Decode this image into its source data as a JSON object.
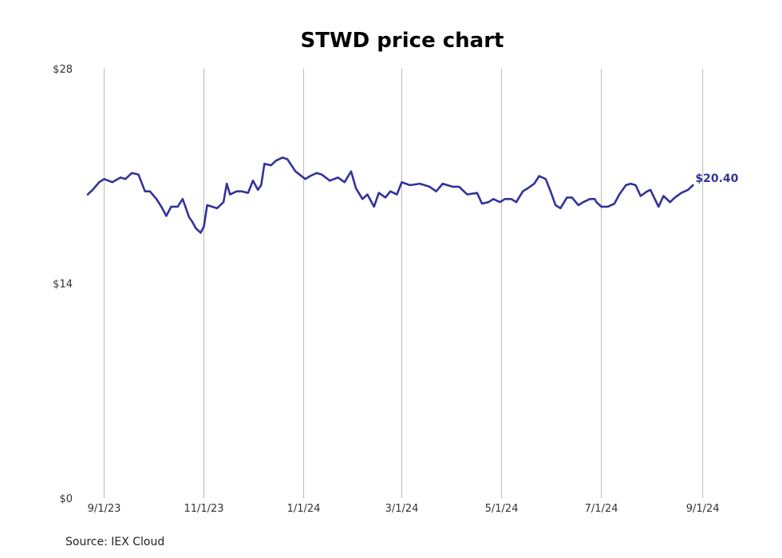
{
  "chart_data": {
    "type": "line",
    "title": "STWD price chart",
    "source": "Source: IEX Cloud",
    "xlabel": "",
    "ylabel": "",
    "ylim": [
      0,
      28
    ],
    "y_ticks": [
      {
        "value": 0,
        "label": "$0"
      },
      {
        "value": 14,
        "label": "$14"
      },
      {
        "value": 28,
        "label": "$28"
      }
    ],
    "xlim": [
      "2023-08-22",
      "2024-09-08"
    ],
    "x_ticks": [
      {
        "date": "2023-09-01",
        "label": "9/1/23"
      },
      {
        "date": "2023-11-01",
        "label": "11/1/23"
      },
      {
        "date": "2024-01-01",
        "label": "1/1/24"
      },
      {
        "date": "2024-03-01",
        "label": "3/1/24"
      },
      {
        "date": "2024-05-01",
        "label": "5/1/24"
      },
      {
        "date": "2024-07-01",
        "label": "7/1/24"
      },
      {
        "date": "2024-09-01",
        "label": "9/1/24"
      }
    ],
    "grid": "vertical",
    "line_color": "#333399",
    "last_value_label": "$20.40",
    "series": [
      {
        "points": [
          [
            "2023-08-22",
            19.8
          ],
          [
            "2023-08-25",
            20.1
          ],
          [
            "2023-08-29",
            20.6
          ],
          [
            "2023-09-01",
            20.8
          ],
          [
            "2023-09-06",
            20.6
          ],
          [
            "2023-09-11",
            20.9
          ],
          [
            "2023-09-14",
            20.8
          ],
          [
            "2023-09-18",
            21.2
          ],
          [
            "2023-09-22",
            21.1
          ],
          [
            "2023-09-26",
            20.0
          ],
          [
            "2023-09-29",
            20.0
          ],
          [
            "2023-10-03",
            19.5
          ],
          [
            "2023-10-06",
            19.0
          ],
          [
            "2023-10-09",
            18.4
          ],
          [
            "2023-10-12",
            19.0
          ],
          [
            "2023-10-16",
            19.0
          ],
          [
            "2023-10-19",
            19.5
          ],
          [
            "2023-10-23",
            18.3
          ],
          [
            "2023-10-25",
            18.0
          ],
          [
            "2023-10-27",
            17.6
          ],
          [
            "2023-10-30",
            17.3
          ],
          [
            "2023-11-01",
            17.7
          ],
          [
            "2023-11-03",
            19.1
          ],
          [
            "2023-11-06",
            19.0
          ],
          [
            "2023-11-09",
            18.9
          ],
          [
            "2023-11-13",
            19.3
          ],
          [
            "2023-11-15",
            20.5
          ],
          [
            "2023-11-17",
            19.8
          ],
          [
            "2023-11-21",
            20.0
          ],
          [
            "2023-11-24",
            20.0
          ],
          [
            "2023-11-28",
            19.9
          ],
          [
            "2023-12-01",
            20.7
          ],
          [
            "2023-12-04",
            20.1
          ],
          [
            "2023-12-06",
            20.4
          ],
          [
            "2023-12-08",
            21.8
          ],
          [
            "2023-12-12",
            21.7
          ],
          [
            "2023-12-15",
            22.0
          ],
          [
            "2023-12-19",
            22.2
          ],
          [
            "2023-12-22",
            22.1
          ],
          [
            "2023-12-27",
            21.3
          ],
          [
            "2024-01-02",
            20.8
          ],
          [
            "2024-01-05",
            21.0
          ],
          [
            "2024-01-09",
            21.2
          ],
          [
            "2024-01-12",
            21.1
          ],
          [
            "2024-01-17",
            20.7
          ],
          [
            "2024-01-22",
            20.9
          ],
          [
            "2024-01-26",
            20.6
          ],
          [
            "2024-01-30",
            21.3
          ],
          [
            "2024-02-02",
            20.2
          ],
          [
            "2024-02-06",
            19.5
          ],
          [
            "2024-02-09",
            19.8
          ],
          [
            "2024-02-13",
            19.0
          ],
          [
            "2024-02-16",
            19.9
          ],
          [
            "2024-02-20",
            19.6
          ],
          [
            "2024-02-23",
            20.0
          ],
          [
            "2024-02-27",
            19.8
          ],
          [
            "2024-03-01",
            20.6
          ],
          [
            "2024-03-06",
            20.4
          ],
          [
            "2024-03-12",
            20.5
          ],
          [
            "2024-03-18",
            20.3
          ],
          [
            "2024-03-22",
            20.0
          ],
          [
            "2024-03-26",
            20.5
          ],
          [
            "2024-04-01",
            20.3
          ],
          [
            "2024-04-05",
            20.3
          ],
          [
            "2024-04-10",
            19.8
          ],
          [
            "2024-04-16",
            19.9
          ],
          [
            "2024-04-19",
            19.2
          ],
          [
            "2024-04-23",
            19.3
          ],
          [
            "2024-04-26",
            19.5
          ],
          [
            "2024-04-30",
            19.3
          ],
          [
            "2024-05-03",
            19.5
          ],
          [
            "2024-05-07",
            19.5
          ],
          [
            "2024-05-10",
            19.3
          ],
          [
            "2024-05-14",
            20.0
          ],
          [
            "2024-05-17",
            20.2
          ],
          [
            "2024-05-21",
            20.5
          ],
          [
            "2024-05-24",
            21.0
          ],
          [
            "2024-05-28",
            20.8
          ],
          [
            "2024-05-31",
            20.0
          ],
          [
            "2024-06-03",
            19.1
          ],
          [
            "2024-06-06",
            18.9
          ],
          [
            "2024-06-10",
            19.6
          ],
          [
            "2024-06-13",
            19.6
          ],
          [
            "2024-06-17",
            19.1
          ],
          [
            "2024-06-20",
            19.3
          ],
          [
            "2024-06-24",
            19.5
          ],
          [
            "2024-06-27",
            19.5
          ],
          [
            "2024-06-28",
            19.3
          ],
          [
            "2024-07-01",
            19.0
          ],
          [
            "2024-07-05",
            19.0
          ],
          [
            "2024-07-09",
            19.2
          ],
          [
            "2024-07-12",
            19.8
          ],
          [
            "2024-07-16",
            20.4
          ],
          [
            "2024-07-19",
            20.5
          ],
          [
            "2024-07-22",
            20.4
          ],
          [
            "2024-07-25",
            19.7
          ],
          [
            "2024-07-29",
            20.0
          ],
          [
            "2024-07-31",
            20.1
          ],
          [
            "2024-08-05",
            19.0
          ],
          [
            "2024-08-08",
            19.7
          ],
          [
            "2024-08-12",
            19.3
          ],
          [
            "2024-08-15",
            19.6
          ],
          [
            "2024-08-19",
            19.9
          ],
          [
            "2024-08-23",
            20.1
          ],
          [
            "2024-08-26",
            20.4
          ]
        ]
      }
    ]
  }
}
